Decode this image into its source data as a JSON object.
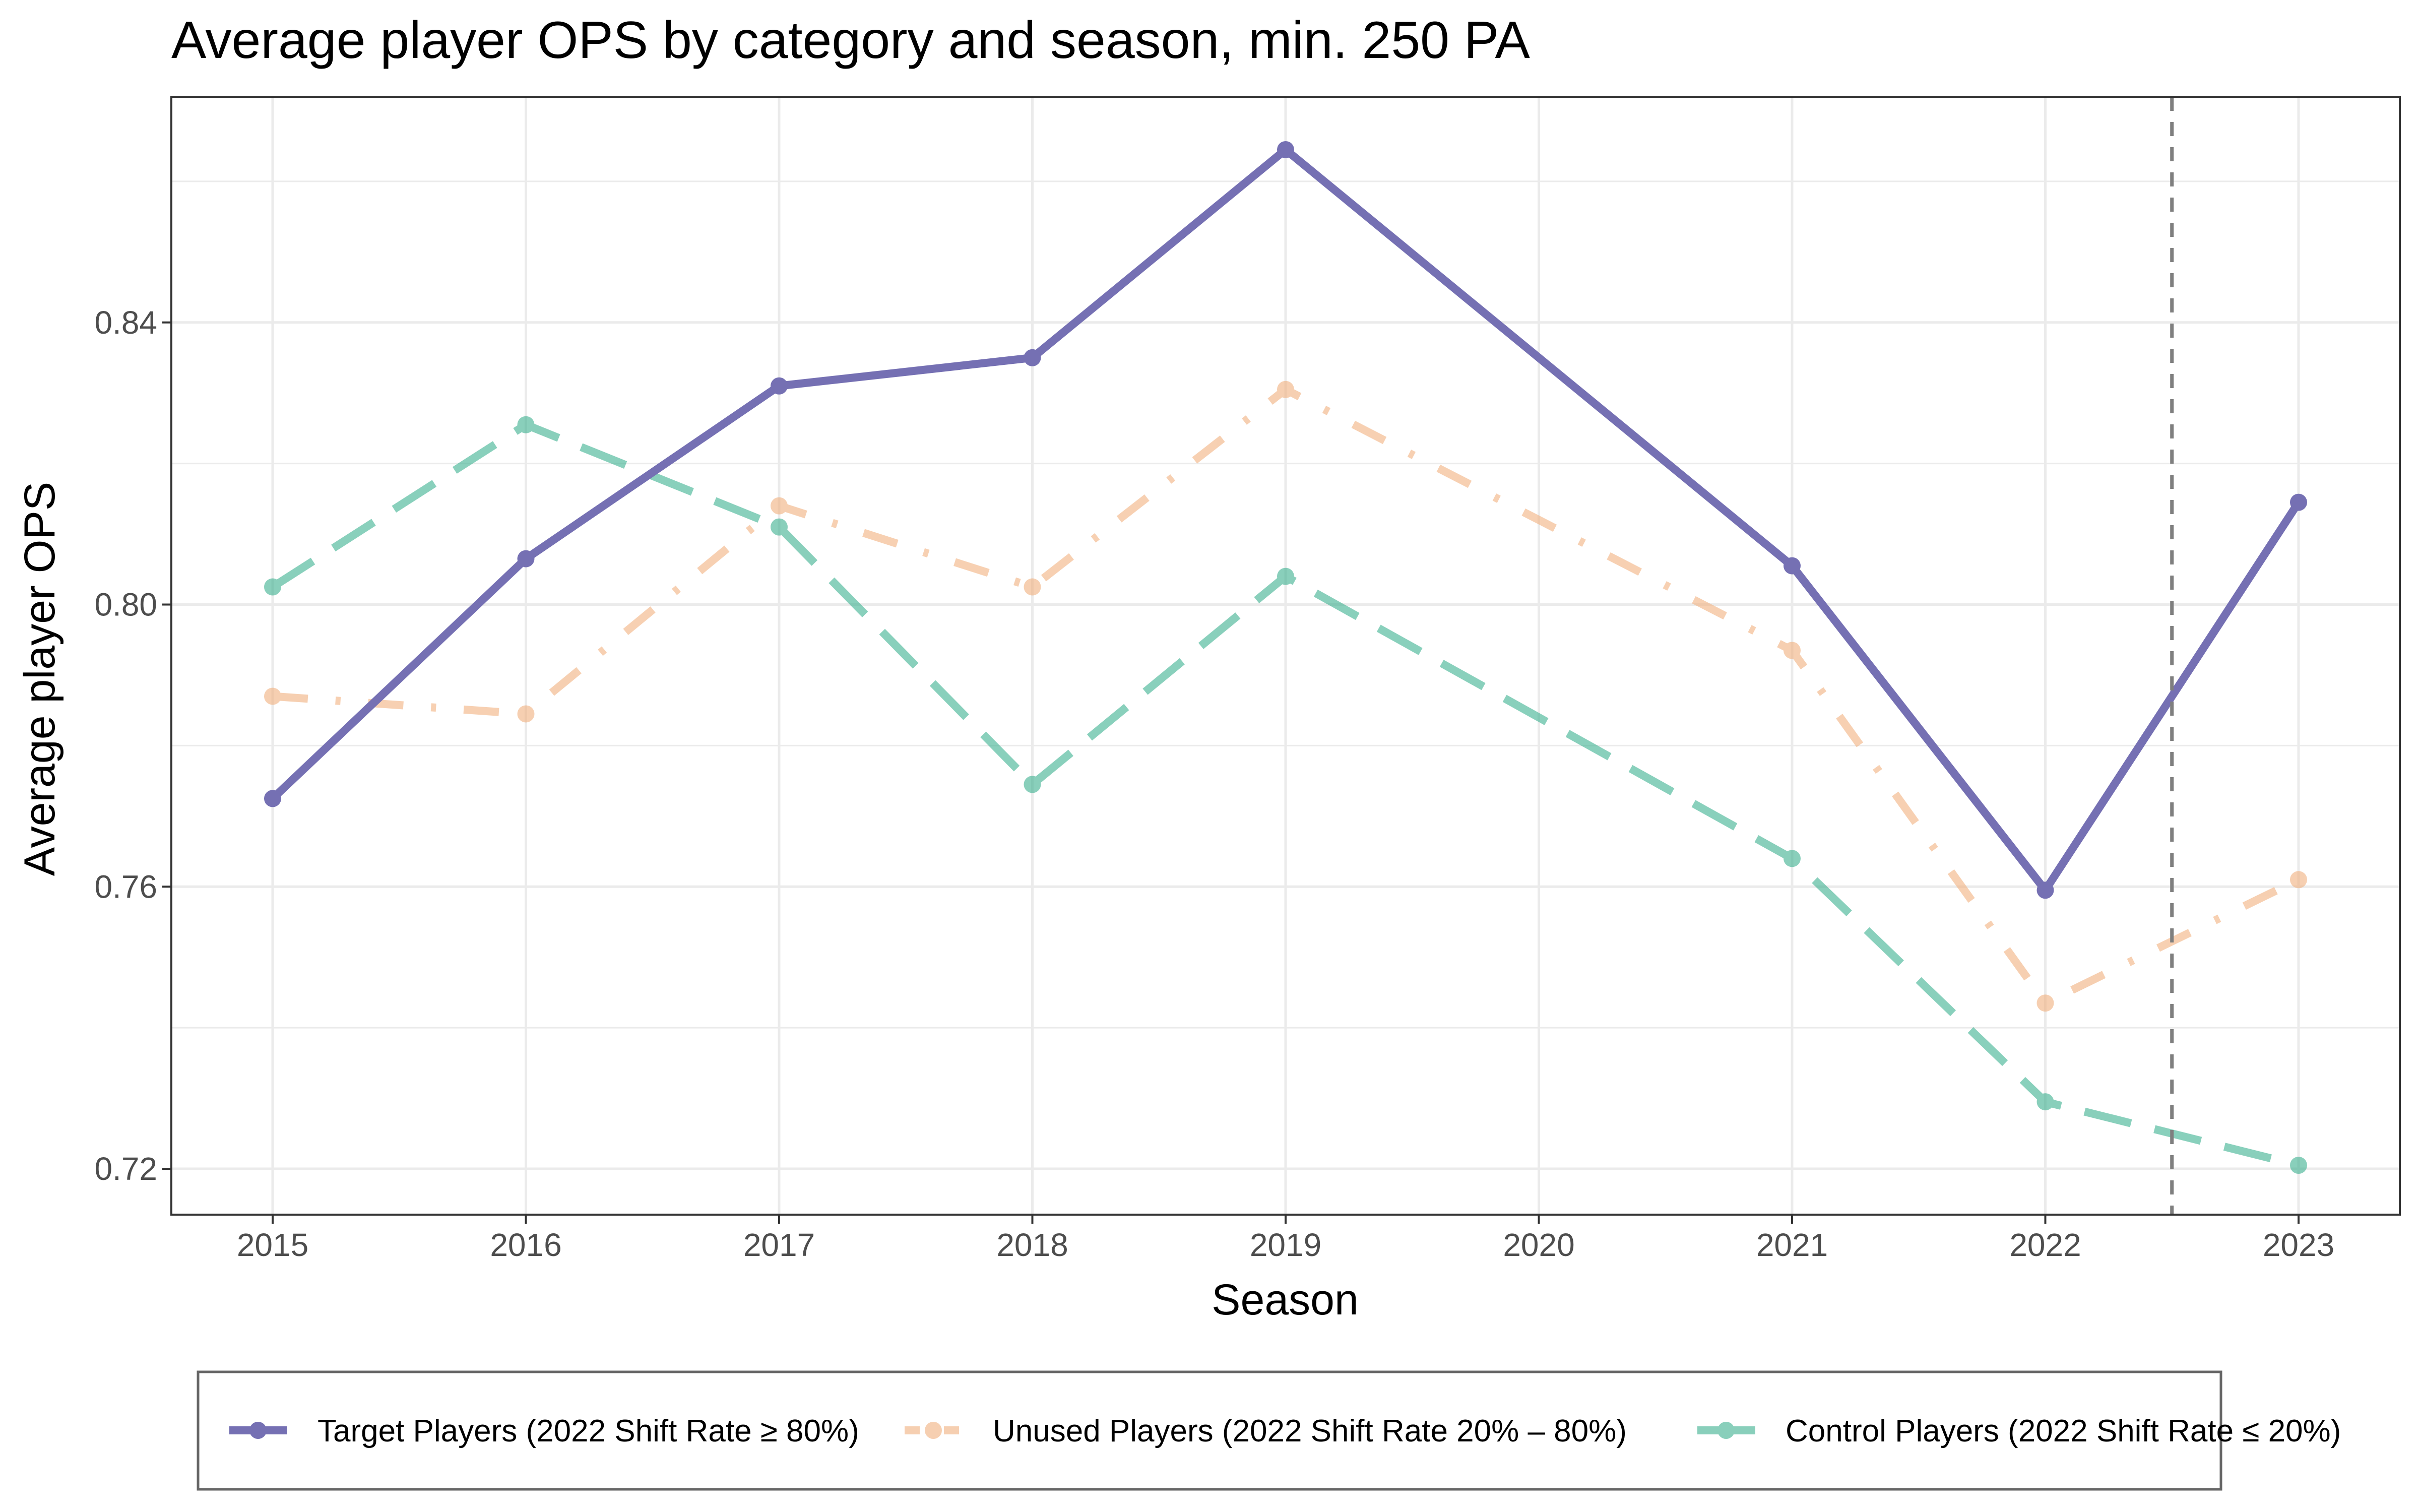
{
  "chart_data": {
    "type": "line",
    "title": "Average player OPS by category and season, min. 250 PA",
    "xlabel": "Season",
    "ylabel": "Average player OPS",
    "x": [
      2015,
      2016,
      2017,
      2018,
      2019,
      2020,
      2021,
      2022,
      2023
    ],
    "x_ticks": [
      "2015",
      "2016",
      "2017",
      "2018",
      "2019",
      "2020",
      "2021",
      "2022",
      "2023"
    ],
    "xlim": [
      2014.6,
      2023.4
    ],
    "ylim": [
      0.7135,
      0.872
    ],
    "y_ticks": [
      0.72,
      0.76,
      0.8,
      0.84
    ],
    "y_tick_labels": [
      "0.72",
      "0.76",
      "0.80",
      "0.84"
    ],
    "grid": true,
    "legend_position": "bottom",
    "reference_line": {
      "orientation": "vertical",
      "x": 2022.5,
      "style": "dashed",
      "color": "#7f7f7f"
    },
    "series": [
      {
        "name": "Target Players (2022 Shift Rate ≥ 80%)",
        "color": "#7570b3",
        "style": "solid",
        "opacity": 1,
        "points": [
          [
            2015,
            0.7725
          ],
          [
            2016,
            0.8065
          ],
          [
            2017,
            0.831
          ],
          [
            2018,
            0.835
          ],
          [
            2019,
            0.8645
          ],
          [
            2021,
            0.8055
          ],
          [
            2022,
            0.7595
          ],
          [
            2023,
            0.8145
          ]
        ]
      },
      {
        "name": "Unused Players (2022 Shift Rate 20% – 80%)",
        "color": "#f1b07e",
        "style": "dotdash",
        "opacity": 0.6,
        "points": [
          [
            2015,
            0.787
          ],
          [
            2016,
            0.7845
          ],
          [
            2017,
            0.814
          ],
          [
            2018,
            0.8025
          ],
          [
            2019,
            0.8305
          ],
          [
            2021,
            0.7935
          ],
          [
            2022,
            0.7435
          ],
          [
            2023,
            0.761
          ]
        ]
      },
      {
        "name": "Control Players (2022 Shift Rate ≤ 20%)",
        "color": "#3bb08f",
        "style": "dashed",
        "opacity": 0.6,
        "points": [
          [
            2015,
            0.8025
          ],
          [
            2016,
            0.8255
          ],
          [
            2017,
            0.811
          ],
          [
            2018,
            0.7745
          ],
          [
            2019,
            0.804
          ],
          [
            2021,
            0.764
          ],
          [
            2022,
            0.7295
          ],
          [
            2023,
            0.7205
          ]
        ]
      }
    ]
  }
}
